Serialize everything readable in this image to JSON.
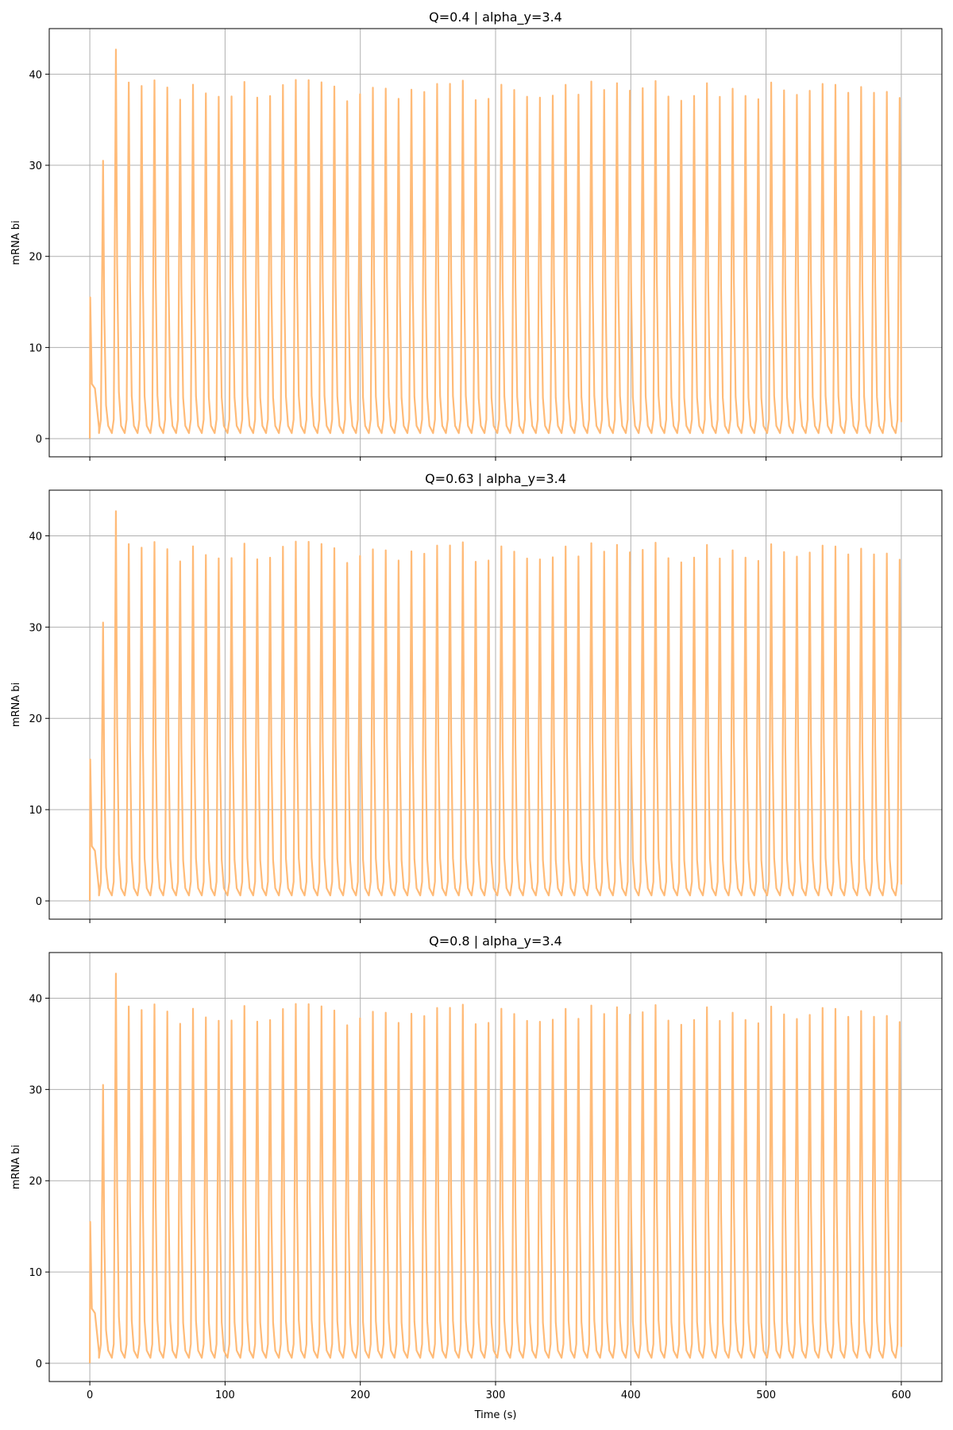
{
  "chart_data": [
    {
      "type": "line",
      "title": "Q=0.4 | alpha_y=3.4",
      "xlabel": "",
      "ylabel": "mRNA bi",
      "xlim": [
        -30,
        630
      ],
      "ylim": [
        -2,
        45
      ],
      "xticks": [
        0,
        100,
        200,
        300,
        400,
        500,
        600
      ],
      "yticks": [
        0,
        10,
        20,
        30,
        40
      ],
      "show_xtick_labels": false,
      "grid": true,
      "series_color": "#ffbb78",
      "oscillation": {
        "period_s": 9.5,
        "trough": 0.6,
        "typical_peak": 38.0,
        "first_peak": 15.5,
        "second_peak": 30.5,
        "max_peak": 42.7,
        "final_value": 1.8,
        "t_end": 600
      }
    },
    {
      "type": "line",
      "title": "Q=0.63 | alpha_y=3.4",
      "xlabel": "",
      "ylabel": "mRNA bi",
      "xlim": [
        -30,
        630
      ],
      "ylim": [
        -2,
        45
      ],
      "xticks": [
        0,
        100,
        200,
        300,
        400,
        500,
        600
      ],
      "yticks": [
        0,
        10,
        20,
        30,
        40
      ],
      "show_xtick_labels": false,
      "grid": true,
      "series_color": "#ffbb78",
      "oscillation": {
        "period_s": 9.5,
        "trough": 0.6,
        "typical_peak": 38.0,
        "first_peak": 15.5,
        "second_peak": 30.5,
        "max_peak": 42.7,
        "final_value": 1.8,
        "t_end": 600
      }
    },
    {
      "type": "line",
      "title": "Q=0.8 | alpha_y=3.4",
      "xlabel": "Time (s)",
      "ylabel": "mRNA bi",
      "xlim": [
        -30,
        630
      ],
      "ylim": [
        -2,
        45
      ],
      "xticks": [
        0,
        100,
        200,
        300,
        400,
        500,
        600
      ],
      "yticks": [
        0,
        10,
        20,
        30,
        40
      ],
      "show_xtick_labels": true,
      "grid": true,
      "series_color": "#ffbb78",
      "oscillation": {
        "period_s": 9.5,
        "trough": 0.6,
        "typical_peak": 38.0,
        "first_peak": 15.5,
        "second_peak": 30.5,
        "max_peak": 42.7,
        "final_value": 1.8,
        "t_end": 600
      }
    }
  ]
}
